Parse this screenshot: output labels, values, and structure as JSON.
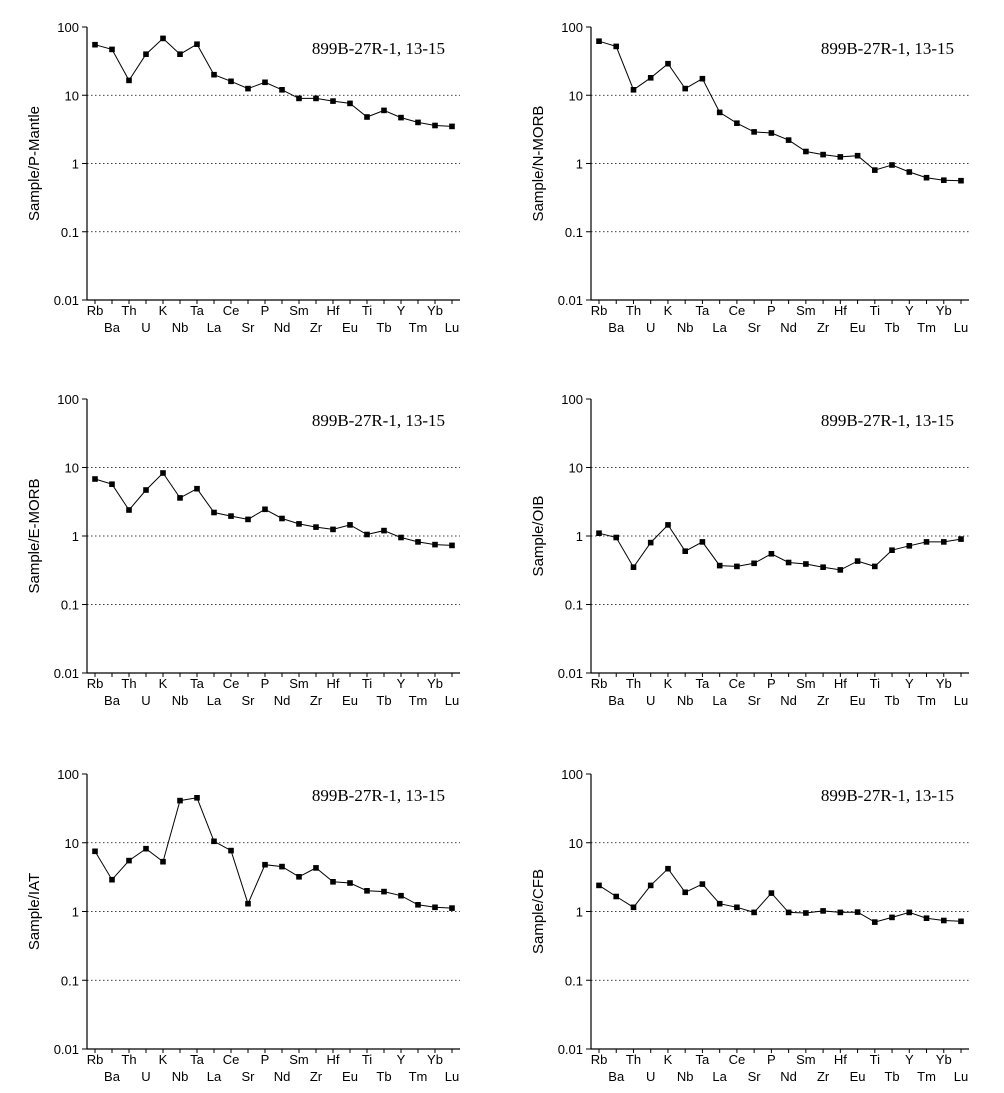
{
  "chart_data": [
    {
      "type": "line",
      "ylabel": "Sample/P-Mantle",
      "annotation": "899B-27R-1, 13-15",
      "yscale": "log",
      "ylim": [
        0.01,
        100
      ],
      "yticks": [
        "100",
        "10",
        "1",
        "0.1",
        "0.01"
      ],
      "grid": "horizontal dotted",
      "categories": [
        "Rb",
        "Ba",
        "Th",
        "U",
        "K",
        "Nb",
        "Ta",
        "La",
        "Ce",
        "Sr",
        "P",
        "Nd",
        "Sm",
        "Zr",
        "Hf",
        "Eu",
        "Ti",
        "Tb",
        "Y",
        "Tm",
        "Yb",
        "Lu"
      ],
      "values": [
        55,
        47,
        16.5,
        40,
        68,
        40,
        56,
        20,
        16,
        12.5,
        15.5,
        12,
        9,
        9,
        8.2,
        7.6,
        4.8,
        6,
        4.7,
        4,
        3.6,
        3.5
      ]
    },
    {
      "type": "line",
      "ylabel": "Sample/N-MORB",
      "annotation": "899B-27R-1, 13-15",
      "yscale": "log",
      "ylim": [
        0.01,
        100
      ],
      "yticks": [
        "100",
        "10",
        "1",
        "0.1",
        "0.01"
      ],
      "grid": "horizontal dotted",
      "categories": [
        "Rb",
        "Ba",
        "Th",
        "U",
        "K",
        "Nb",
        "Ta",
        "La",
        "Ce",
        "Sr",
        "P",
        "Nd",
        "Sm",
        "Zr",
        "Hf",
        "Eu",
        "Ti",
        "Tb",
        "Y",
        "Tm",
        "Yb",
        "Lu"
      ],
      "values": [
        62,
        52,
        12,
        18,
        29,
        12.5,
        17.5,
        5.6,
        3.9,
        2.9,
        2.8,
        2.2,
        1.5,
        1.35,
        1.25,
        1.3,
        0.8,
        0.95,
        0.75,
        0.62,
        0.57,
        0.56
      ]
    },
    {
      "type": "line",
      "ylabel": "Sample/E-MORB",
      "annotation": "899B-27R-1, 13-15",
      "yscale": "log",
      "ylim": [
        0.01,
        100
      ],
      "yticks": [
        "100",
        "10",
        "1",
        "0.1",
        "0.01"
      ],
      "grid": "horizontal dotted",
      "categories": [
        "Rb",
        "Ba",
        "Th",
        "U",
        "K",
        "Nb",
        "Ta",
        "La",
        "Ce",
        "Sr",
        "P",
        "Nd",
        "Sm",
        "Zr",
        "Hf",
        "Eu",
        "Ti",
        "Tb",
        "Y",
        "Tm",
        "Yb",
        "Lu"
      ],
      "values": [
        6.8,
        5.7,
        2.4,
        4.7,
        8.3,
        3.6,
        4.9,
        2.2,
        1.95,
        1.75,
        2.45,
        1.8,
        1.5,
        1.35,
        1.25,
        1.45,
        1.05,
        1.2,
        0.95,
        0.82,
        0.75,
        0.73
      ]
    },
    {
      "type": "line",
      "ylabel": "Sample/OIB",
      "annotation": "899B-27R-1, 13-15",
      "yscale": "log",
      "ylim": [
        0.01,
        100
      ],
      "yticks": [
        "100",
        "10",
        "1",
        "0.1",
        "0.01"
      ],
      "grid": "horizontal dotted",
      "categories": [
        "Rb",
        "Ba",
        "Th",
        "U",
        "K",
        "Nb",
        "Ta",
        "La",
        "Ce",
        "Sr",
        "P",
        "Nd",
        "Sm",
        "Zr",
        "Hf",
        "Eu",
        "Ti",
        "Tb",
        "Y",
        "Tm",
        "Yb",
        "Lu"
      ],
      "values": [
        1.1,
        0.95,
        0.35,
        0.8,
        1.45,
        0.6,
        0.82,
        0.37,
        0.36,
        0.4,
        0.55,
        0.41,
        0.39,
        0.35,
        0.32,
        0.43,
        0.36,
        0.62,
        0.72,
        0.82,
        0.82,
        0.9
      ]
    },
    {
      "type": "line",
      "ylabel": "Sample/IAT",
      "annotation": "899B-27R-1, 13-15",
      "yscale": "log",
      "ylim": [
        0.01,
        100
      ],
      "yticks": [
        "100",
        "10",
        "1",
        "0.1",
        "0.01"
      ],
      "grid": "horizontal dotted",
      "categories": [
        "Rb",
        "Ba",
        "Th",
        "U",
        "K",
        "Nb",
        "Ta",
        "La",
        "Ce",
        "Sr",
        "P",
        "Nd",
        "Sm",
        "Zr",
        "Hf",
        "Eu",
        "Ti",
        "Tb",
        "Y",
        "Tm",
        "Yb",
        "Lu"
      ],
      "values": [
        7.5,
        2.9,
        5.5,
        8.2,
        5.3,
        41,
        45,
        10.5,
        7.7,
        1.3,
        4.8,
        4.5,
        3.2,
        4.3,
        2.7,
        2.6,
        2,
        1.95,
        1.7,
        1.25,
        1.15,
        1.12
      ]
    },
    {
      "type": "line",
      "ylabel": "Sample/CFB",
      "annotation": "899B-27R-1, 13-15",
      "yscale": "log",
      "ylim": [
        0.01,
        100
      ],
      "yticks": [
        "100",
        "10",
        "1",
        "0.1",
        "0.01"
      ],
      "grid": "horizontal dotted",
      "categories": [
        "Rb",
        "Ba",
        "Th",
        "U",
        "K",
        "Nb",
        "Ta",
        "La",
        "Ce",
        "Sr",
        "P",
        "Nd",
        "Sm",
        "Zr",
        "Hf",
        "Eu",
        "Ti",
        "Tb",
        "Y",
        "Tm",
        "Yb",
        "Lu"
      ],
      "values": [
        2.4,
        1.65,
        1.15,
        2.4,
        4.2,
        1.9,
        2.5,
        1.3,
        1.15,
        0.97,
        1.85,
        0.97,
        0.95,
        1.02,
        0.97,
        0.98,
        0.7,
        0.82,
        0.97,
        0.8,
        0.74,
        0.72
      ]
    }
  ]
}
